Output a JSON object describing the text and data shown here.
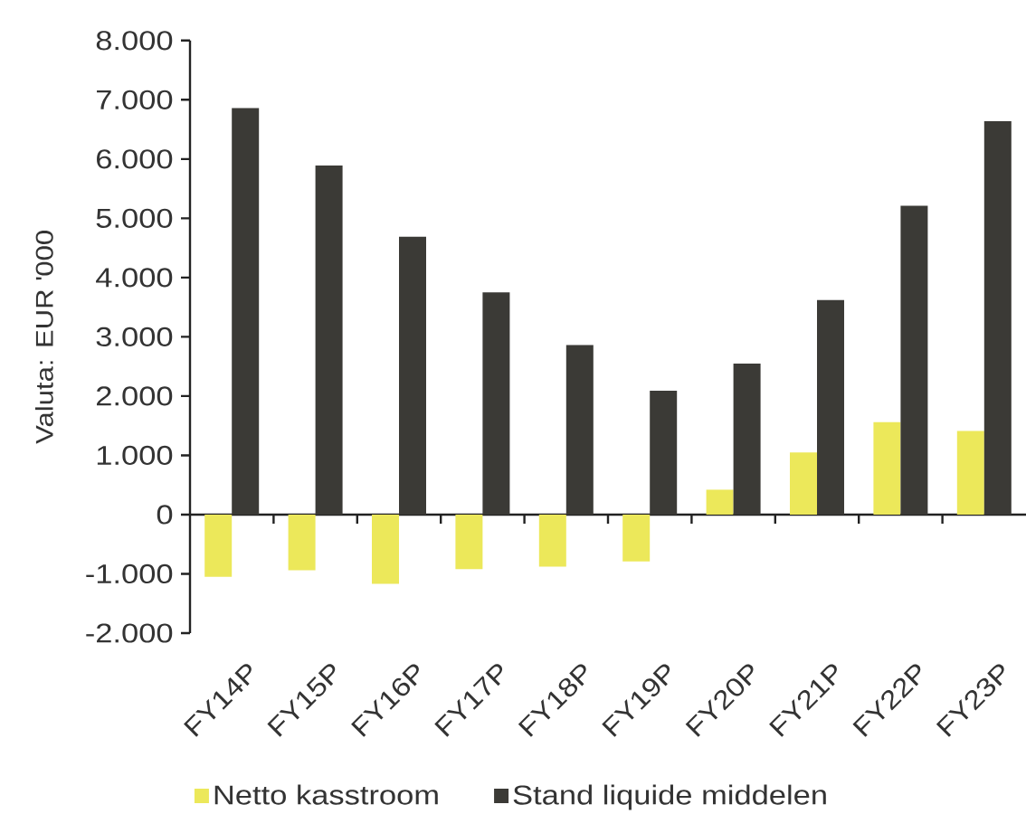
{
  "chart_data": {
    "type": "bar",
    "categories": [
      "FY14P",
      "FY15P",
      "FY16P",
      "FY17P",
      "FY18P",
      "FY19P",
      "FY20P",
      "FY21P",
      "FY22P",
      "FY23P"
    ],
    "series": [
      {
        "name": "Netto kasstroom",
        "color": "#ece85a",
        "values": [
          -1050,
          -940,
          -1170,
          -920,
          -880,
          -790,
          420,
          1050,
          1560,
          1410
        ]
      },
      {
        "name": "Stand liquide middelen",
        "color": "#3b3a36",
        "values": [
          6860,
          5890,
          4690,
          3750,
          2860,
          2090,
          2550,
          3620,
          5210,
          6640
        ]
      }
    ],
    "ylabel": "Valuta: EUR '000",
    "ylim": [
      -2000,
      8000
    ],
    "yticks": [
      {
        "value": -2000,
        "label": "-2.000"
      },
      {
        "value": -1000,
        "label": "-1.000"
      },
      0,
      {
        "value": 1000,
        "label": "1.000"
      },
      {
        "value": 2000,
        "label": "2.000"
      },
      {
        "value": 3000,
        "label": "3.000"
      },
      {
        "value": 4000,
        "label": "4.000"
      },
      {
        "value": 5000,
        "label": "5.000"
      },
      {
        "value": 6000,
        "label": "6.000"
      },
      {
        "value": 7000,
        "label": "7.000"
      },
      {
        "value": 8000,
        "label": "8.000"
      }
    ],
    "legend": "bottom"
  }
}
